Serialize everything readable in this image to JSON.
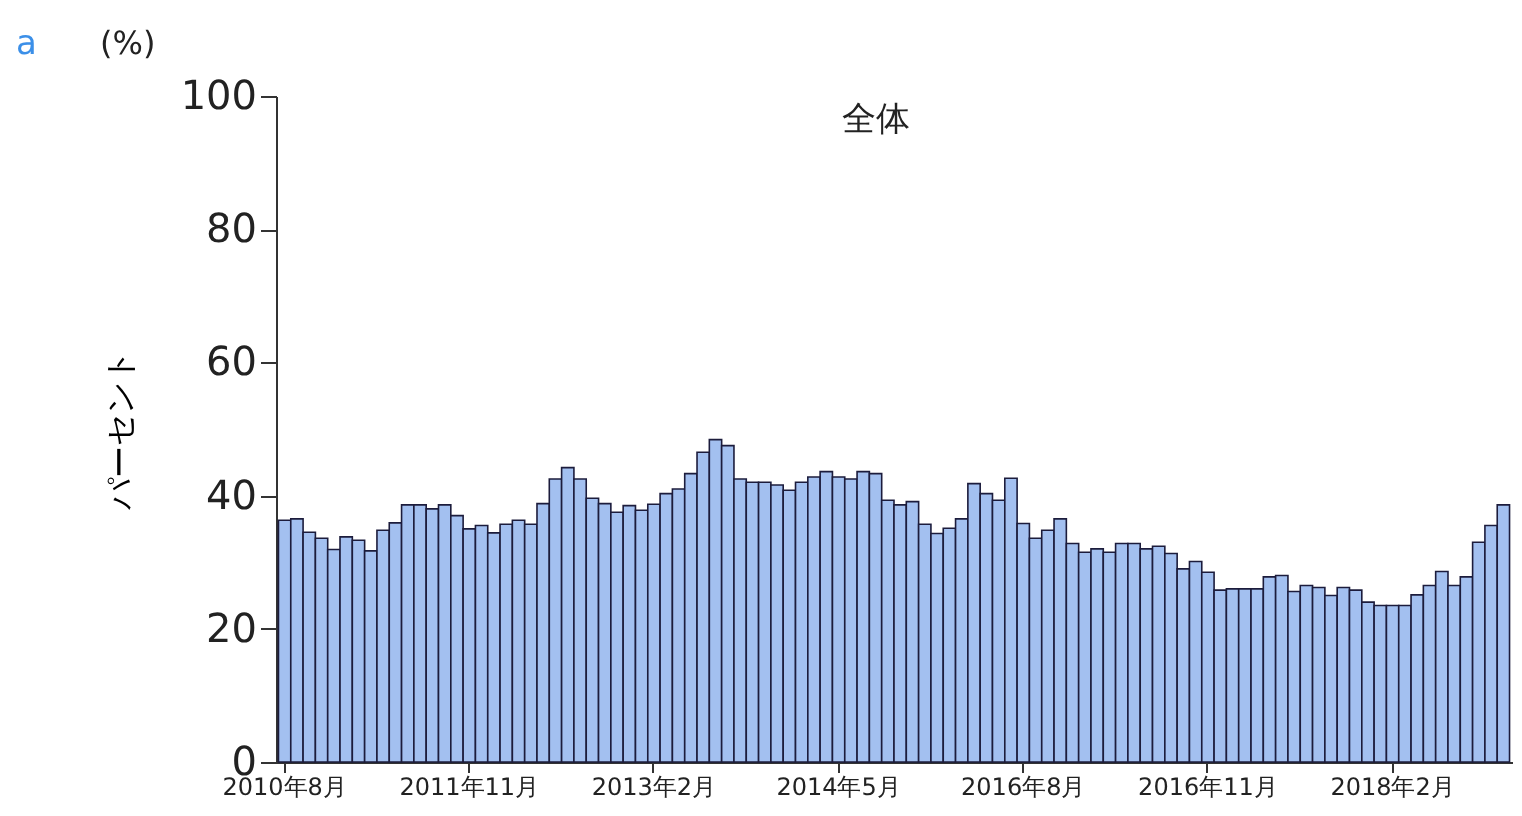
{
  "chart_data": {
    "type": "bar",
    "title": "全体",
    "ylabel": "パーセント",
    "annotations": [
      "a",
      "(%)"
    ],
    "categories": [
      "2010年8月",
      null,
      null,
      null,
      null,
      null,
      null,
      null,
      null,
      null,
      null,
      null,
      null,
      null,
      null,
      "2011年11月",
      null,
      null,
      null,
      null,
      null,
      null,
      null,
      null,
      null,
      null,
      null,
      null,
      null,
      null,
      "2013年2月",
      null,
      null,
      null,
      null,
      null,
      null,
      null,
      null,
      null,
      null,
      null,
      null,
      null,
      null,
      "2014年5月",
      null,
      null,
      null,
      null,
      null,
      null,
      null,
      null,
      null,
      null,
      null,
      null,
      null,
      null,
      "2016年8月",
      null,
      null,
      null,
      null,
      null,
      null,
      null,
      null,
      null,
      null,
      null,
      null,
      null,
      null,
      "2016年11月",
      null,
      null,
      null,
      null,
      null,
      null,
      null,
      null,
      null,
      null,
      null,
      null,
      null,
      null,
      "2018年2月",
      null,
      null,
      null,
      null,
      null,
      null,
      null,
      null,
      null
    ],
    "values": [
      36.3,
      36.5,
      34.5,
      33.6,
      31.9,
      33.8,
      33.3,
      31.7,
      34.8,
      35.9,
      38.6,
      38.6,
      38.0,
      38.6,
      37.0,
      35.0,
      35.5,
      34.4,
      35.7,
      36.3,
      35.7,
      38.8,
      42.5,
      44.2,
      42.5,
      39.6,
      38.8,
      37.5,
      38.5,
      37.8,
      38.7,
      40.3,
      41.0,
      43.3,
      46.5,
      48.4,
      47.5,
      42.5,
      42.0,
      42.0,
      41.6,
      40.8,
      42.0,
      42.8,
      43.6,
      42.8,
      42.5,
      43.6,
      43.3,
      39.3,
      38.6,
      39.1,
      35.7,
      34.3,
      35.1,
      36.5,
      41.8,
      40.3,
      39.3,
      42.6,
      35.8,
      33.6,
      34.8,
      36.5,
      32.8,
      31.5,
      32.0,
      31.5,
      32.8,
      32.8,
      32.0,
      32.4,
      31.3,
      29.0,
      30.1,
      28.5,
      25.8,
      26.0,
      26.0,
      26.0,
      27.8,
      28.0,
      25.6,
      26.5,
      26.2,
      25.0,
      26.2,
      25.8,
      24.0,
      23.5,
      23.5,
      23.5,
      25.1,
      26.5,
      28.6,
      26.5,
      27.8,
      33.0,
      35.5,
      38.6
    ],
    "color": "#a3c0f0",
    "ylim": [
      0,
      100
    ],
    "yticks": [
      0,
      20,
      40,
      60,
      80,
      100
    ],
    "grid": false
  }
}
